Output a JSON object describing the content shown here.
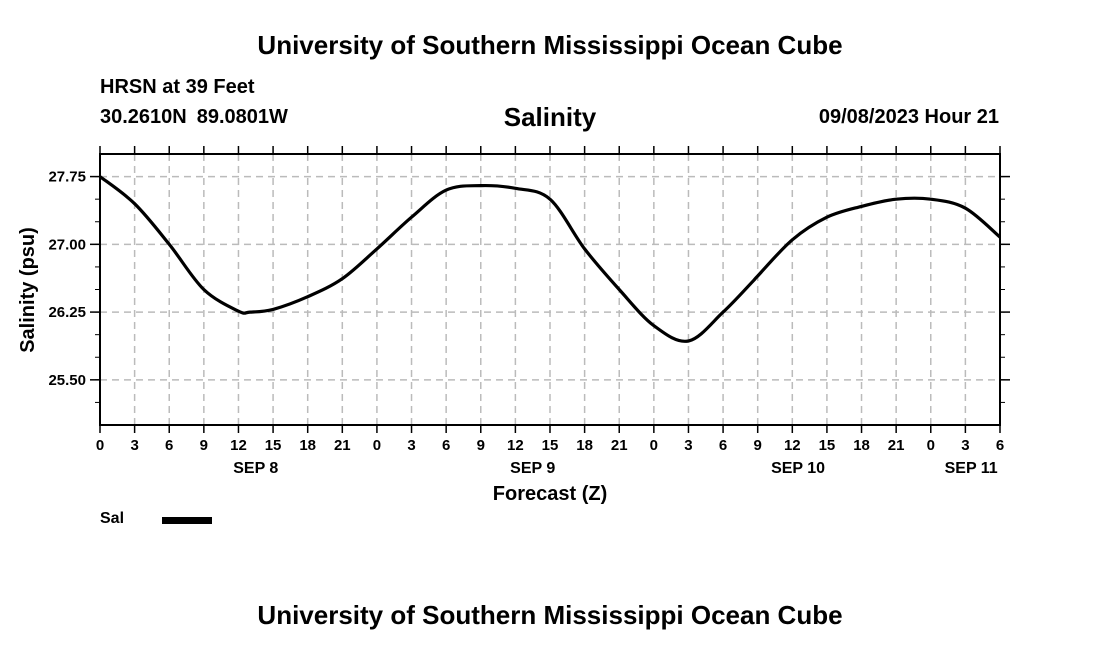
{
  "header": {
    "title": "University of Southern Mississippi Ocean Cube",
    "station": "HRSN at 39 Feet",
    "lat": "30.2610N",
    "lon": "89.0801W",
    "timestamp": "09/08/2023 Hour 21"
  },
  "footer": {
    "title": "University of Southern Mississippi Ocean Cube"
  },
  "legend": {
    "label": "Sal",
    "color": "#000000"
  },
  "chart_data": {
    "type": "line",
    "title": "Salinity",
    "xlabel": "Forecast (Z)",
    "ylabel": "Salinity (psu)",
    "xlim": [
      0,
      78
    ],
    "ylim": [
      25.0,
      28.0
    ],
    "x_unit": "hours since 09/08 00Z",
    "x_tick_step": 3,
    "x_tick_labels": [
      "0",
      "3",
      "6",
      "9",
      "12",
      "15",
      "18",
      "21",
      "0",
      "3",
      "6",
      "9",
      "12",
      "15",
      "18",
      "21",
      "0",
      "3",
      "6",
      "9",
      "12",
      "15",
      "18",
      "21",
      "0",
      "3",
      "6"
    ],
    "y_ticks": [
      25.5,
      26.25,
      27.0,
      27.75
    ],
    "y_tick_labels": [
      "25.50",
      "26.25",
      "27.00",
      "27.75"
    ],
    "y_minor_step": 0.25,
    "date_labels": [
      {
        "label": "SEP 8",
        "x": 13.5
      },
      {
        "label": "SEP 9",
        "x": 37.5
      },
      {
        "label": "SEP 10",
        "x": 60.5
      },
      {
        "label": "SEP 11",
        "x": 75.5
      }
    ],
    "grid": true,
    "series": [
      {
        "name": "Sal",
        "x": [
          0,
          3,
          6,
          9,
          12,
          13,
          15,
          18,
          21,
          24,
          27,
          30,
          33,
          36,
          39,
          42,
          45,
          48,
          51,
          54,
          56.5,
          57,
          60,
          63,
          66,
          69,
          72,
          75,
          78
        ],
        "y": [
          27.75,
          27.45,
          27.0,
          26.5,
          26.26,
          26.25,
          26.28,
          26.42,
          26.62,
          26.95,
          27.3,
          27.6,
          27.65,
          27.62,
          27.5,
          26.95,
          26.5,
          26.1,
          25.93,
          26.25,
          26.58,
          26.65,
          27.05,
          27.3,
          27.42,
          27.5,
          27.5,
          27.4,
          27.08
        ]
      }
    ]
  }
}
